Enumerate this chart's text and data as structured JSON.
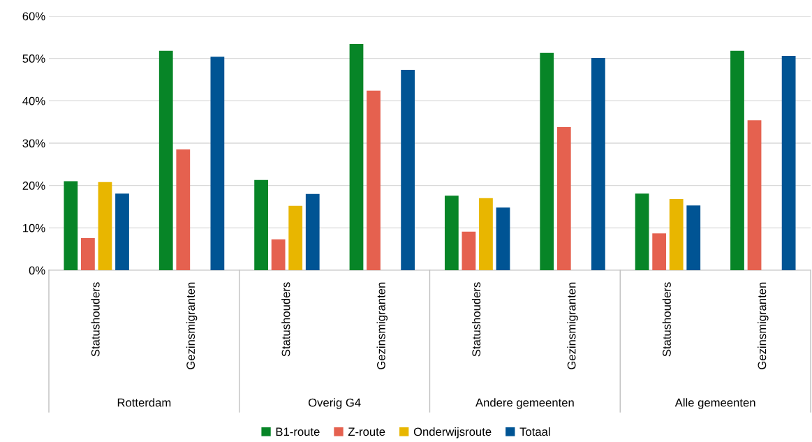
{
  "chart_data": {
    "type": "bar",
    "categories": [
      "Statushouders",
      "Gezinsmigranten",
      "Statushouders",
      "Gezinsmigranten",
      "Statushouders",
      "Gezinsmigranten",
      "Statushouders",
      "Gezinsmigranten"
    ],
    "annotations": [
      "Rotterdam",
      "Overig G4",
      "Andere gemeenten",
      "Alle gemeenten"
    ],
    "series": [
      {
        "name": "B1-route",
        "color": "#078527",
        "values": [
          21,
          51.8,
          21.3,
          53.4,
          17.6,
          51.3,
          18.1,
          51.8
        ]
      },
      {
        "name": "Z-route",
        "color": "#e5614f",
        "values": [
          7.6,
          28.5,
          7.3,
          42.4,
          9.1,
          33.8,
          8.7,
          35.4
        ]
      },
      {
        "name": "Onderwijsroute",
        "color": "#e8b600",
        "values": [
          20.8,
          null,
          15.2,
          null,
          17.0,
          null,
          16.8,
          null
        ]
      },
      {
        "name": "Totaal",
        "color": "#005494",
        "values": [
          18.1,
          50.4,
          18.0,
          47.3,
          14.8,
          50.1,
          15.3,
          50.6
        ]
      }
    ],
    "ylim": [
      0,
      60
    ],
    "yticks": [
      {
        "value": 0,
        "label": "0%"
      },
      {
        "value": 10,
        "label": "10%"
      },
      {
        "value": 20,
        "label": "20%"
      },
      {
        "value": 30,
        "label": "30%"
      },
      {
        "value": 40,
        "label": "40%"
      },
      {
        "value": 50,
        "label": "50%"
      },
      {
        "value": 60,
        "label": "60%"
      }
    ],
    "grid": "y",
    "legend": "bottom"
  }
}
